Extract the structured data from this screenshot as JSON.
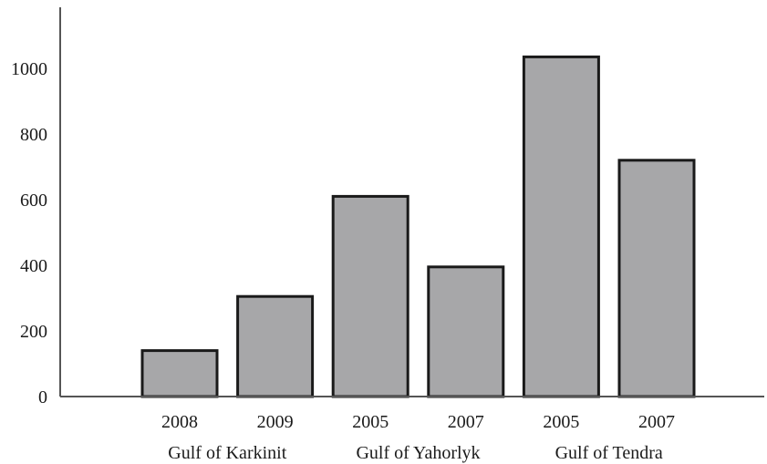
{
  "chart_data": {
    "type": "bar",
    "title": "",
    "xlabel": "",
    "ylabel": "",
    "ylim": [
      0,
      1150
    ],
    "yticks": [
      0,
      200,
      400,
      600,
      800,
      1000
    ],
    "grid": false,
    "legend": "none",
    "bar_color": "#a7a7a9",
    "bar_edge_color": "#1a1a1a",
    "categories": [
      "2008",
      "2009",
      "2005",
      "2007",
      "2005",
      "2007"
    ],
    "values": [
      140,
      305,
      610,
      395,
      1035,
      720
    ],
    "groups": [
      {
        "label": "Gulf of Karkinit",
        "indices": [
          0,
          1
        ]
      },
      {
        "label": "Gulf of Yahorlyk",
        "indices": [
          2,
          3
        ]
      },
      {
        "label": "Gulf of Tendra",
        "indices": [
          4,
          5
        ]
      }
    ]
  }
}
